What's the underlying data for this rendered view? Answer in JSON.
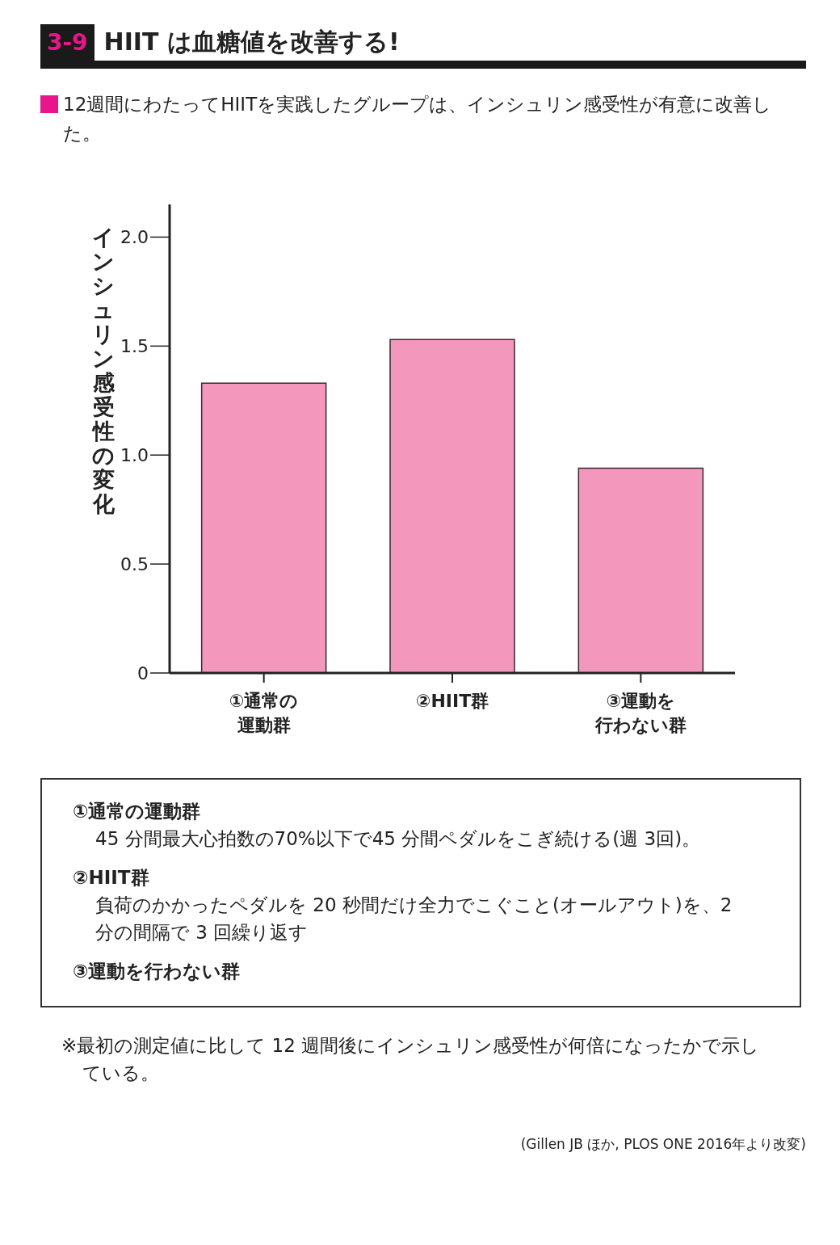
{
  "chart_data": {
    "type": "bar",
    "title": "HIIT は血糖値を改善する!",
    "subtitle": "12週間にわたってHIITを実践したグループは、インシュリン感受性が有意に改善した。",
    "ylabel": "インシュリン感受性の変化",
    "categories": [
      "①通常の運動群",
      "②HIIT群",
      "③運動を行わない群"
    ],
    "values": [
      1.33,
      1.53,
      0.94
    ],
    "color": "#f497bd",
    "ylim": [
      0,
      2.15
    ],
    "yticks": [
      0,
      0.5,
      {
        "value": 1,
        "label": "1.0"
      },
      1.5,
      {
        "value": 2,
        "label": "2.0"
      }
    ],
    "grid": false,
    "legend": false,
    "annotations": [
      "3-9",
      "①通常の運動群",
      "45 分間最大心拍数の70%以下で45 分間ペダルをこぎ続ける(週 3回)。",
      "②HIIT群",
      "負荷のかかったペダルを 20 秒間だけ全力でこぐこと(オールアウト)を、2 分の間隔で 3 回繰り返す",
      "③運動を行わない群",
      "※最初の測定値に比して 12 週間後にインシュリン感受性が何倍になったかで示している。",
      "(Gillen JB ほか, PLOS ONE 2016年より改変)"
    ]
  }
}
